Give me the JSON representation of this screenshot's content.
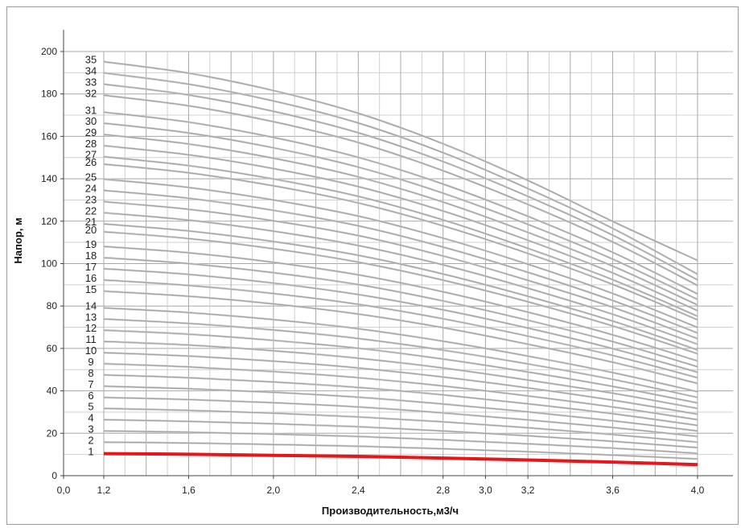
{
  "chart_data": {
    "type": "line",
    "title": "",
    "xlabel": "Производительность,м3/ч",
    "ylabel": "Напор, м",
    "xlim": [
      0.0,
      4.0
    ],
    "ylim": [
      0,
      200
    ],
    "x_ticks": [
      "0,0",
      "1,2",
      "1,6",
      "2,0",
      "2,4",
      "2,8",
      "3,2",
      "3,6",
      "4,0"
    ],
    "y_ticks": [
      "0",
      "20",
      "40",
      "60",
      "80",
      "100",
      "120",
      "140",
      "160",
      "180",
      "200"
    ],
    "x_extra_tick_labels": [
      "3,0"
    ],
    "grid": true,
    "x": [
      1.2,
      1.6,
      2.0,
      2.4,
      2.8,
      3.2,
      3.6,
      4.0
    ],
    "highlight_series": "1",
    "highlight_color": "#e8151b",
    "curve_color": "#c8c8c8",
    "series": [
      {
        "name": "1",
        "values": [
          10.4,
          10.1,
          9.6,
          9.1,
          8.3,
          7.4,
          6.4,
          5.2
        ]
      },
      {
        "name": "2",
        "values": [
          15.8,
          15.4,
          14.7,
          13.9,
          12.7,
          11.3,
          9.7,
          7.9
        ]
      },
      {
        "name": "3",
        "values": [
          21.1,
          20.5,
          19.6,
          18.5,
          16.9,
          15.0,
          13.0,
          10.5
        ]
      },
      {
        "name": "4",
        "values": [
          26.4,
          25.6,
          24.5,
          23.1,
          21.1,
          18.8,
          16.2,
          13.2
        ]
      },
      {
        "name": "5",
        "values": [
          31.7,
          30.8,
          29.5,
          27.7,
          25.4,
          22.6,
          19.4,
          15.8
        ]
      },
      {
        "name": "6",
        "values": [
          36.9,
          35.9,
          34.4,
          32.4,
          29.6,
          26.3,
          22.7,
          18.5
        ]
      },
      {
        "name": "7",
        "values": [
          42.2,
          41.0,
          39.3,
          37.0,
          33.8,
          30.1,
          25.9,
          21.1
        ]
      },
      {
        "name": "8",
        "values": [
          47.5,
          46.2,
          44.2,
          41.6,
          38.1,
          33.9,
          29.2,
          23.7
        ]
      },
      {
        "name": "9",
        "values": [
          52.8,
          51.3,
          49.1,
          46.2,
          42.3,
          37.6,
          32.4,
          26.4
        ]
      },
      {
        "name": "10",
        "values": [
          58.0,
          56.4,
          54.0,
          50.8,
          46.5,
          41.4,
          35.6,
          29.0
        ]
      },
      {
        "name": "11",
        "values": [
          63.3,
          61.6,
          58.9,
          55.4,
          50.8,
          45.1,
          38.9,
          31.7
        ]
      },
      {
        "name": "12",
        "values": [
          68.6,
          66.7,
          63.8,
          60.1,
          55.0,
          48.9,
          42.1,
          34.3
        ]
      },
      {
        "name": "13",
        "values": [
          73.9,
          71.8,
          68.7,
          64.7,
          59.2,
          52.7,
          45.4,
          36.9
        ]
      },
      {
        "name": "14",
        "values": [
          79.1,
          76.9,
          73.6,
          69.3,
          63.4,
          56.4,
          48.6,
          39.6
        ]
      },
      {
        "name": "15",
        "values": [
          87.0,
          84.6,
          81.0,
          76.2,
          69.8,
          62.0,
          53.5,
          43.5
        ]
      },
      {
        "name": "16",
        "values": [
          92.3,
          89.7,
          85.9,
          80.8,
          74.0,
          65.8,
          56.7,
          46.2
        ]
      },
      {
        "name": "17",
        "values": [
          97.6,
          94.9,
          90.8,
          85.4,
          78.2,
          69.6,
          59.9,
          48.8
        ]
      },
      {
        "name": "18",
        "values": [
          102.8,
          100.0,
          95.7,
          90.1,
          82.4,
          73.3,
          63.2,
          51.4
        ]
      },
      {
        "name": "19",
        "values": [
          108.1,
          105.1,
          100.6,
          94.7,
          86.7,
          77.1,
          66.4,
          54.1
        ]
      },
      {
        "name": "20",
        "values": [
          115.0,
          111.8,
          107.0,
          100.7,
          92.2,
          82.0,
          70.6,
          57.5
        ]
      },
      {
        "name": "21",
        "values": [
          118.7,
          115.4,
          110.4,
          103.9,
          95.1,
          84.6,
          72.9,
          59.3
        ]
      },
      {
        "name": "22",
        "values": [
          124.0,
          120.5,
          115.3,
          108.5,
          99.4,
          88.4,
          76.1,
          62.0
        ]
      },
      {
        "name": "23",
        "values": [
          129.2,
          125.6,
          120.2,
          113.2,
          103.6,
          92.1,
          79.4,
          64.6
        ]
      },
      {
        "name": "24",
        "values": [
          134.5,
          130.8,
          125.1,
          117.8,
          107.8,
          95.9,
          82.6,
          67.3
        ]
      },
      {
        "name": "25",
        "values": [
          139.8,
          135.9,
          130.0,
          122.4,
          112.0,
          99.7,
          85.9,
          69.9
        ]
      },
      {
        "name": "26",
        "values": [
          146.9,
          142.8,
          136.7,
          128.6,
          117.8,
          104.8,
          90.2,
          73.5
        ]
      },
      {
        "name": "27",
        "values": [
          150.4,
          146.2,
          139.9,
          131.7,
          120.6,
          107.2,
          92.4,
          75.2
        ]
      },
      {
        "name": "28",
        "values": [
          155.6,
          151.3,
          144.8,
          136.3,
          124.8,
          111.0,
          95.6,
          77.8
        ]
      },
      {
        "name": "29",
        "values": [
          160.9,
          156.4,
          149.7,
          140.9,
          129.0,
          114.7,
          98.8,
          80.5
        ]
      },
      {
        "name": "30",
        "values": [
          166.2,
          161.6,
          154.6,
          145.5,
          133.2,
          118.5,
          102.1,
          83.1
        ]
      },
      {
        "name": "31",
        "values": [
          171.4,
          166.7,
          159.5,
          150.1,
          137.5,
          122.3,
          105.3,
          85.7
        ]
      },
      {
        "name": "32",
        "values": [
          179.4,
          174.4,
          166.9,
          157.1,
          143.8,
          127.9,
          110.2,
          89.7
        ]
      },
      {
        "name": "33",
        "values": [
          184.6,
          179.5,
          171.8,
          161.7,
          148.1,
          131.7,
          113.4,
          92.3
        ]
      },
      {
        "name": "34",
        "values": [
          189.9,
          184.6,
          176.7,
          166.3,
          152.3,
          135.4,
          116.6,
          95.0
        ]
      },
      {
        "name": "35",
        "values": [
          195.2,
          189.8,
          181.6,
          170.9,
          156.5,
          139.2,
          119.9,
          101.5
        ]
      }
    ]
  }
}
